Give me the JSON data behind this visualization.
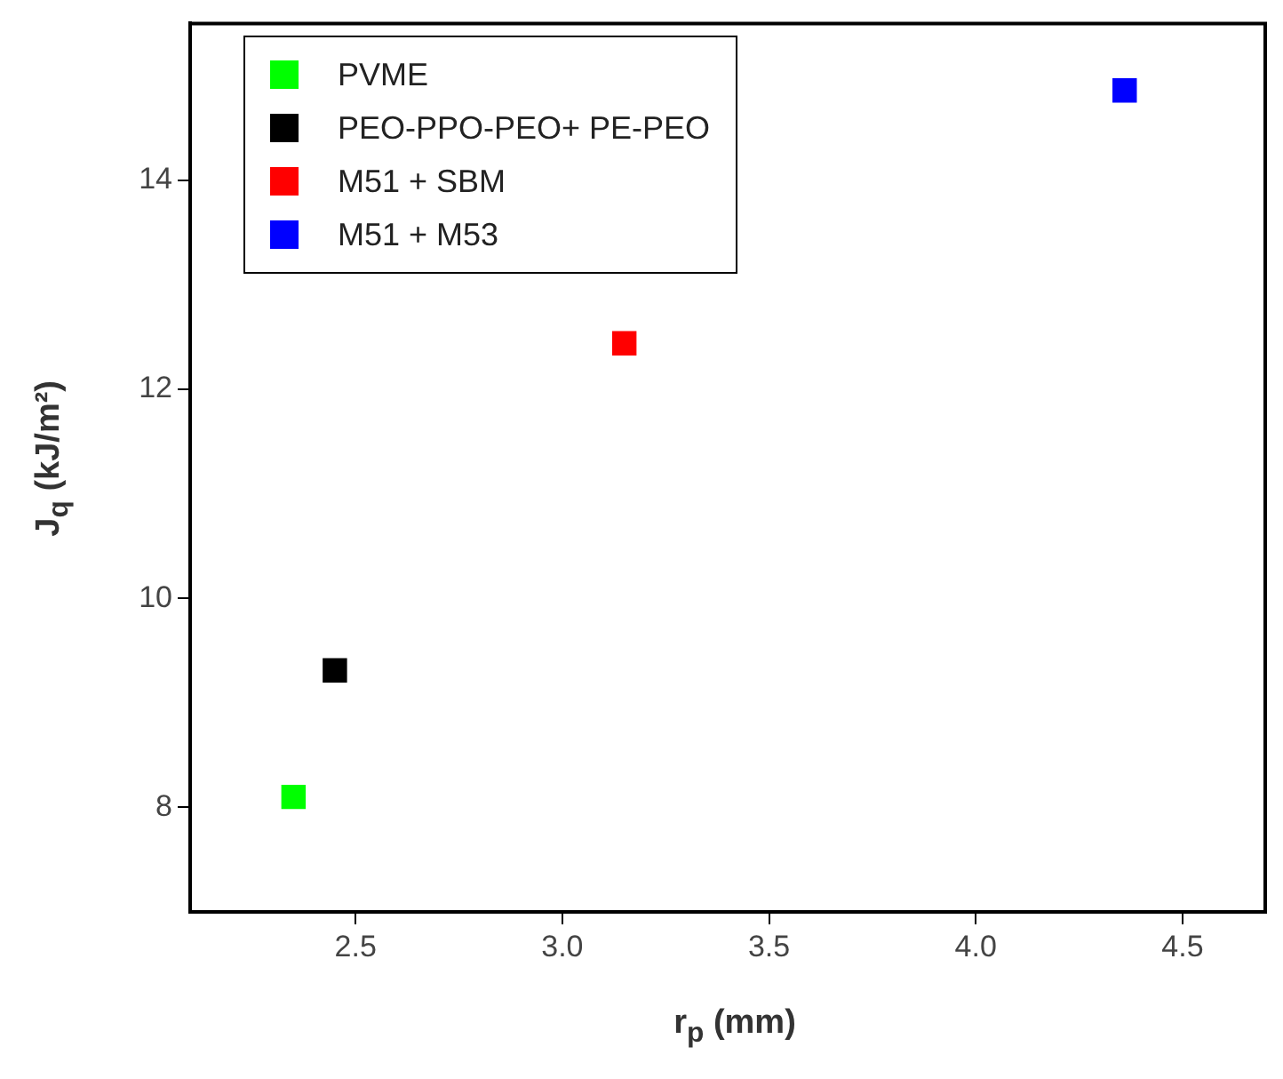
{
  "chart_data": {
    "type": "scatter",
    "xlabel": "r$_{p}$ (mm)",
    "ylabel": "J$_{q}$ (kJ/m²)",
    "xlim": [
      2.1,
      4.7
    ],
    "xticks": [
      {
        "value": 2.5,
        "label": "2.5"
      },
      {
        "value": 3.0,
        "label": "3.0"
      },
      {
        "value": 3.5,
        "label": "3.5"
      },
      {
        "value": 4.0,
        "label": "4.0"
      },
      {
        "value": 4.5,
        "label": "4.5"
      }
    ],
    "ylim": [
      7,
      15.5
    ],
    "yticks": [
      8,
      10,
      12,
      14
    ],
    "grid": false,
    "legend": "top left",
    "marker": "square",
    "series": [
      {
        "name": "PVME",
        "color": "#00ff00",
        "x": [
          2.35
        ],
        "values": [
          8.1
        ]
      },
      {
        "name": "PEO-PPO-PEO+ PE-PEO",
        "color": "#000000",
        "x": [
          2.45
        ],
        "values": [
          9.31
        ]
      },
      {
        "name": "M51 + SBM",
        "color": "#ff0000",
        "x": [
          3.15
        ],
        "values": [
          12.44
        ]
      },
      {
        "name": "M51 + M53",
        "color": "#0000ff",
        "x": [
          4.36
        ],
        "values": [
          14.86
        ]
      }
    ]
  }
}
